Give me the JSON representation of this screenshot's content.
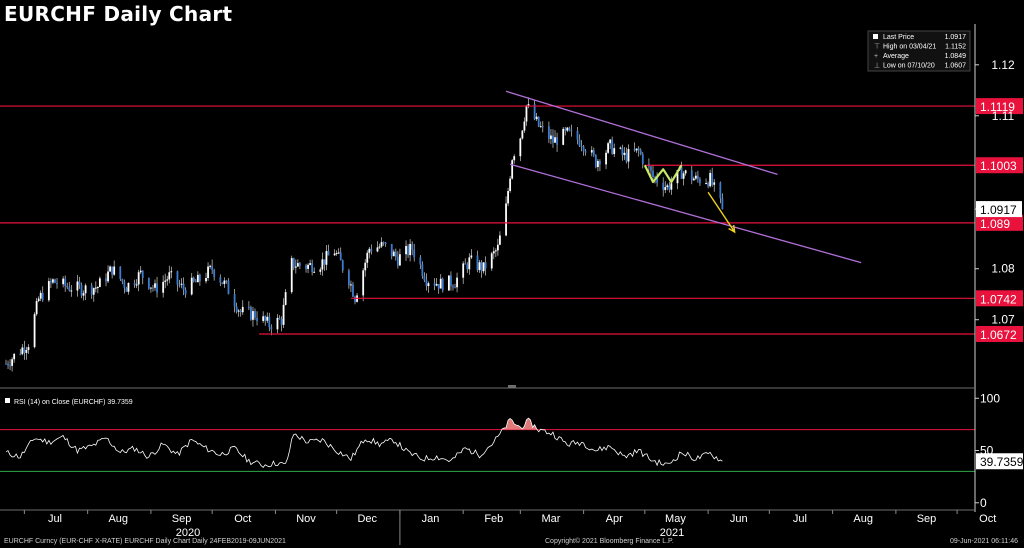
{
  "title": "EURCHF Daily Chart",
  "footer": {
    "left": "EURCHF Curncy (EUR-CHF X-RATE) EURCHF Daily Chart  Daily 24FEB2019-09JUN2021",
    "center": "Copyright© 2021 Bloomberg Finance L.P.",
    "right": "09-Jun-2021 06:11:46"
  },
  "legend": [
    {
      "label": "Last Price",
      "value": "1.0917",
      "marker": "square"
    },
    {
      "label": "High on 03/04/21",
      "value": "1.1152",
      "marker": "high-tick"
    },
    {
      "label": "Average",
      "value": "1.0849",
      "marker": "average-dash"
    },
    {
      "label": "Low on 07/10/20",
      "value": "1.0607",
      "marker": "low-tick"
    }
  ],
  "colors": {
    "background": "#000000",
    "candle_up": "#ffffff",
    "candle_down": "#3d7ccf",
    "level_line": "#e8123c",
    "channel": "#b06fd8",
    "w_pattern": "#c8e86a",
    "arrow": "#f1d21b",
    "rsi_line": "#ffffff",
    "rsi_upper": "#e8123c",
    "rsi_lower": "#2ea84a",
    "rsi_fill": "#e07a7a",
    "axis_text": "#ffffff"
  },
  "chart_data": [
    {
      "type": "line",
      "series_kind": "candlestick",
      "ylim": [
        1.057,
        1.128
      ],
      "y_ticks": [
        1.07,
        1.08,
        1.11,
        1.12
      ],
      "x_labels": [
        "Jul",
        "Aug",
        "Sep",
        "Oct",
        "Nov",
        "Dec",
        "Jan",
        "Feb",
        "Mar",
        "Apr",
        "May",
        "Jun",
        "Jul",
        "Aug",
        "Sep",
        "Oct"
      ],
      "year_labels": [
        "2020",
        "2021"
      ],
      "last_price": 1.0917,
      "horizontal_levels": [
        1.1119,
        1.1003,
        1.089,
        1.0742,
        1.0672
      ],
      "level_labels": [
        "1.1119",
        "1.1003",
        "1.089",
        "1.0742",
        "1.0672"
      ],
      "last_price_label": "1.0917",
      "close_path": [
        [
          "2020-06-25",
          1.0625
        ],
        [
          "2020-07-03",
          1.0655
        ],
        [
          "2020-07-08",
          1.074
        ],
        [
          "2020-07-15",
          1.0775
        ],
        [
          "2020-07-22",
          1.0765
        ],
        [
          "2020-07-30",
          1.076
        ],
        [
          "2020-08-06",
          1.0765
        ],
        [
          "2020-08-13",
          1.08
        ],
        [
          "2020-08-20",
          1.0765
        ],
        [
          "2020-08-27",
          1.079
        ],
        [
          "2020-09-03",
          1.076
        ],
        [
          "2020-09-10",
          1.0785
        ],
        [
          "2020-09-17",
          1.076
        ],
        [
          "2020-09-24",
          1.0775
        ],
        [
          "2020-10-01",
          1.08
        ],
        [
          "2020-10-08",
          1.0765
        ],
        [
          "2020-10-15",
          1.0715
        ],
        [
          "2020-10-22",
          1.071
        ],
        [
          "2020-10-29",
          1.069
        ],
        [
          "2020-11-04",
          1.07
        ],
        [
          "2020-11-09",
          1.081
        ],
        [
          "2020-11-16",
          1.0805
        ],
        [
          "2020-11-23",
          1.081
        ],
        [
          "2020-11-30",
          1.0835
        ],
        [
          "2020-12-07",
          1.078
        ],
        [
          "2020-12-10",
          1.0745
        ],
        [
          "2020-12-17",
          1.084
        ],
        [
          "2020-12-24",
          1.0845
        ],
        [
          "2020-12-31",
          1.082
        ],
        [
          "2021-01-07",
          1.084
        ],
        [
          "2021-01-14",
          1.078
        ],
        [
          "2021-01-21",
          1.077
        ],
        [
          "2021-01-28",
          1.0775
        ],
        [
          "2021-02-04",
          1.0815
        ],
        [
          "2021-02-11",
          1.08
        ],
        [
          "2021-02-18",
          1.084
        ],
        [
          "2021-02-22",
          1.092
        ],
        [
          "2021-02-25",
          1.102
        ],
        [
          "2021-03-01",
          1.106
        ],
        [
          "2021-03-04",
          1.112
        ],
        [
          "2021-03-10",
          1.108
        ],
        [
          "2021-03-17",
          1.105
        ],
        [
          "2021-03-24",
          1.1065
        ],
        [
          "2021-03-31",
          1.105
        ],
        [
          "2021-04-07",
          1.101
        ],
        [
          "2021-04-14",
          1.104
        ],
        [
          "2021-04-21",
          1.102
        ],
        [
          "2021-04-28",
          1.103
        ],
        [
          "2021-05-05",
          1.098
        ],
        [
          "2021-05-12",
          1.096
        ],
        [
          "2021-05-19",
          1.099
        ],
        [
          "2021-05-26",
          1.0975
        ],
        [
          "2021-06-02",
          1.0975
        ],
        [
          "2021-06-08",
          1.0917
        ]
      ],
      "channel_lines": [
        {
          "from": [
            "2021-02-22",
            1.1148
          ],
          "to": [
            "2021-07-05",
            1.0985
          ]
        },
        {
          "from": [
            "2021-02-24",
            1.1005
          ],
          "to": [
            "2021-08-15",
            1.0812
          ]
        }
      ],
      "w_pattern": [
        [
          "2021-05-01",
          1.1003
        ],
        [
          "2021-05-05",
          1.097
        ],
        [
          "2021-05-10",
          1.0995
        ],
        [
          "2021-05-14",
          1.097
        ],
        [
          "2021-05-19",
          1.1003
        ]
      ],
      "projection_arrow": {
        "from": [
          "2021-06-01",
          1.095
        ],
        "to": [
          "2021-06-14",
          1.0872
        ]
      }
    },
    {
      "type": "line",
      "name": "RSI (14)  on Close (EURCHF)",
      "last_value_text": "39.7359",
      "ylim": [
        -5,
        106
      ],
      "y_ticks": [
        0,
        50,
        100
      ],
      "guide_levels": [
        70,
        30
      ],
      "x": [
        "2020-06-22",
        "2020-06-29",
        "2020-07-06",
        "2020-07-13",
        "2020-07-20",
        "2020-07-27",
        "2020-08-03",
        "2020-08-10",
        "2020-08-17",
        "2020-08-24",
        "2020-08-31",
        "2020-09-07",
        "2020-09-14",
        "2020-09-21",
        "2020-09-28",
        "2020-10-05",
        "2020-10-12",
        "2020-10-19",
        "2020-10-26",
        "2020-11-02",
        "2020-11-06",
        "2020-11-10",
        "2020-11-17",
        "2020-11-24",
        "2020-12-01",
        "2020-12-08",
        "2020-12-15",
        "2020-12-22",
        "2020-12-29",
        "2021-01-05",
        "2021-01-12",
        "2021-01-19",
        "2021-01-26",
        "2021-02-02",
        "2021-02-09",
        "2021-02-16",
        "2021-02-20",
        "2021-02-24",
        "2021-03-01",
        "2021-03-05",
        "2021-03-10",
        "2021-03-17",
        "2021-03-24",
        "2021-03-31",
        "2021-04-07",
        "2021-04-14",
        "2021-04-21",
        "2021-04-28",
        "2021-05-05",
        "2021-05-12",
        "2021-05-19",
        "2021-05-26",
        "2021-06-02",
        "2021-06-08"
      ],
      "values": [
        48,
        44,
        62,
        58,
        63,
        50,
        54,
        62,
        48,
        52,
        44,
        56,
        46,
        60,
        52,
        46,
        52,
        40,
        36,
        38,
        36,
        66,
        58,
        60,
        50,
        42,
        62,
        56,
        60,
        48,
        42,
        44,
        40,
        52,
        46,
        58,
        68,
        79,
        72,
        78,
        70,
        66,
        56,
        58,
        50,
        54,
        44,
        50,
        40,
        36,
        48,
        42,
        47,
        39.7359
      ]
    }
  ]
}
